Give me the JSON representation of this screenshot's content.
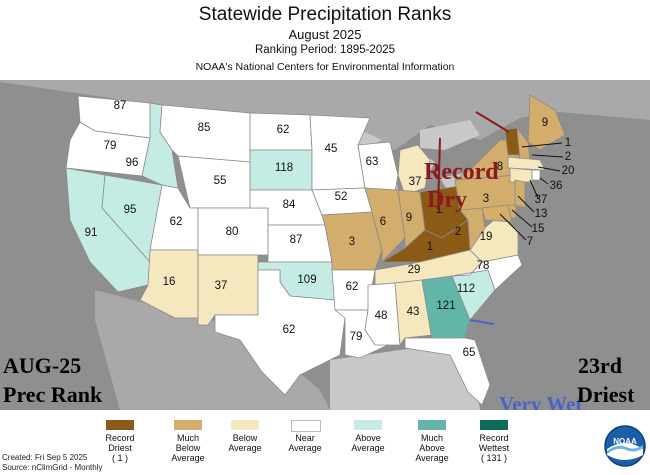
{
  "header": {
    "title": "Statewide Precipitation Ranks",
    "subtitle": "August 2025",
    "period": "Ranking Period: 1895-2025",
    "source": "NOAA's National Centers for Environmental Information"
  },
  "colors": {
    "record_driest": "#8c5a17",
    "much_below": "#d2ad6b",
    "below": "#f5e7be",
    "near": "#ffffff",
    "above": "#c5ece4",
    "much_above": "#62b6a8",
    "record_wettest": "#0d6b58",
    "background": "#8f8f8f",
    "water": "#c8c8c8"
  },
  "state_ranks": [
    {
      "state": "WA",
      "rank": "87",
      "category": "near"
    },
    {
      "state": "OR",
      "rank": "79",
      "category": "near"
    },
    {
      "state": "CA",
      "rank": "91",
      "category": "above"
    },
    {
      "state": "NV",
      "rank": "95",
      "category": "above"
    },
    {
      "state": "ID",
      "rank": "96",
      "category": "above"
    },
    {
      "state": "MT",
      "rank": "85",
      "category": "near"
    },
    {
      "state": "WY",
      "rank": "55",
      "category": "near"
    },
    {
      "state": "UT",
      "rank": "62",
      "category": "near"
    },
    {
      "state": "AZ",
      "rank": "16",
      "category": "below"
    },
    {
      "state": "CO",
      "rank": "80",
      "category": "near"
    },
    {
      "state": "NM",
      "rank": "37",
      "category": "below"
    },
    {
      "state": "ND",
      "rank": "62",
      "category": "near"
    },
    {
      "state": "SD",
      "rank": "118",
      "category": "above"
    },
    {
      "state": "NE",
      "rank": "84",
      "category": "near"
    },
    {
      "state": "KS",
      "rank": "87",
      "category": "near"
    },
    {
      "state": "OK",
      "rank": "109",
      "category": "above"
    },
    {
      "state": "TX",
      "rank": "62",
      "category": "near"
    },
    {
      "state": "MN",
      "rank": "45",
      "category": "near"
    },
    {
      "state": "IA",
      "rank": "52",
      "category": "near"
    },
    {
      "state": "MO",
      "rank": "3",
      "category": "much_below"
    },
    {
      "state": "AR",
      "rank": "62",
      "category": "near"
    },
    {
      "state": "LA",
      "rank": "79",
      "category": "near"
    },
    {
      "state": "WI",
      "rank": "63",
      "category": "near"
    },
    {
      "state": "IL",
      "rank": "6",
      "category": "much_below"
    },
    {
      "state": "MI",
      "rank": "37",
      "category": "below"
    },
    {
      "state": "IN",
      "rank": "9",
      "category": "much_below"
    },
    {
      "state": "OH",
      "rank": "1",
      "category": "record_driest"
    },
    {
      "state": "KY",
      "rank": "1",
      "category": "record_driest"
    },
    {
      "state": "TN",
      "rank": "29",
      "category": "below"
    },
    {
      "state": "MS",
      "rank": "48",
      "category": "near"
    },
    {
      "state": "AL",
      "rank": "43",
      "category": "below"
    },
    {
      "state": "GA",
      "rank": "121",
      "category": "much_above"
    },
    {
      "state": "FL",
      "rank": "65",
      "category": "near"
    },
    {
      "state": "SC",
      "rank": "112",
      "category": "above"
    },
    {
      "state": "NC",
      "rank": "78",
      "category": "near"
    },
    {
      "state": "VA",
      "rank": "19",
      "category": "below"
    },
    {
      "state": "WV",
      "rank": "2",
      "category": "much_below"
    },
    {
      "state": "PA",
      "rank": "3",
      "category": "much_below"
    },
    {
      "state": "NY",
      "rank": "8",
      "category": "much_below"
    },
    {
      "state": "ME",
      "rank": "9",
      "category": "much_below"
    },
    {
      "state": "VT",
      "rank": "1",
      "category": "record_driest"
    },
    {
      "state": "NH",
      "rank": "2",
      "category": "much_below"
    },
    {
      "state": "MA",
      "rank": "20",
      "category": "below"
    },
    {
      "state": "RI",
      "rank": "36",
      "category": "near"
    },
    {
      "state": "CT",
      "rank": "37",
      "category": "below"
    },
    {
      "state": "NJ",
      "rank": "13",
      "category": "much_below"
    },
    {
      "state": "DE",
      "rank": "15",
      "category": "much_below"
    },
    {
      "state": "MD",
      "rank": "7",
      "category": "much_below"
    }
  ],
  "annotations": {
    "record_dry_line1": "Record",
    "record_dry_line2": "Dry",
    "very_wet": "Very Wet",
    "month": "AUG-25",
    "prec_rank": "Prec Rank",
    "ordinal": "23rd",
    "driest": "Driest"
  },
  "legend": [
    {
      "label": "Record Driest (1)",
      "lines": [
        "Record",
        "Driest",
        "( 1 )"
      ],
      "category": "record_driest"
    },
    {
      "label": "Much Below Average",
      "lines": [
        "Much",
        "Below",
        "Average"
      ],
      "category": "much_below"
    },
    {
      "label": "Below Average",
      "lines": [
        "Below",
        "Average"
      ],
      "category": "below"
    },
    {
      "label": "Near Average",
      "lines": [
        "Near",
        "Average"
      ],
      "category": "near"
    },
    {
      "label": "Above Average",
      "lines": [
        "Above",
        "Average"
      ],
      "category": "above"
    },
    {
      "label": "Much Above Average",
      "lines": [
        "Much",
        "Above",
        "Average"
      ],
      "category": "much_above"
    },
    {
      "label": "Record Wettest (131)",
      "lines": [
        "Record",
        "Wettest",
        "( 131 )"
      ],
      "category": "record_wettest"
    }
  ],
  "footer": {
    "created": "Created: Fri Sep  5 2025",
    "source": "Source: nClimGrid - Monthly"
  },
  "logo_text": "NOAA"
}
